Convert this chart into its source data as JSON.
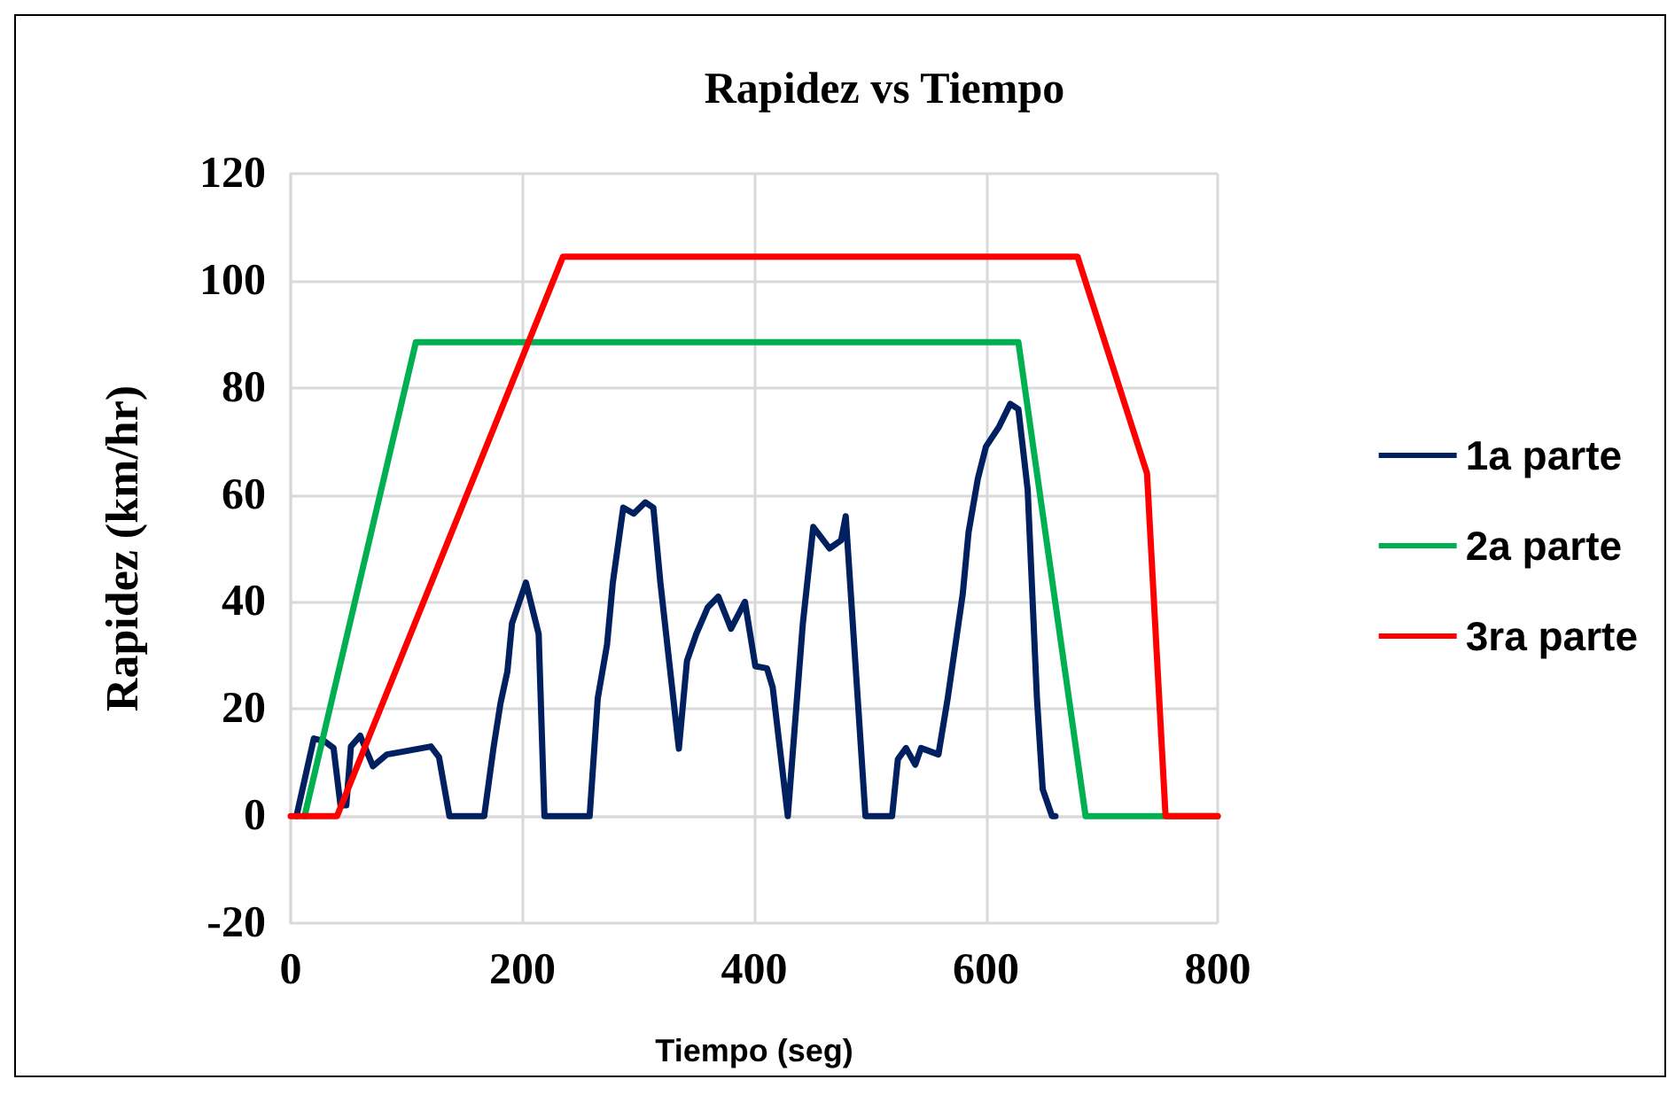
{
  "chart_data": {
    "type": "line",
    "title": "Rapidez vs Tiempo",
    "xlabel": "Tiempo (seg)",
    "ylabel": "Rapidez (km/hr)",
    "xlim": [
      0,
      800
    ],
    "xticks": [
      0,
      200,
      400,
      600,
      800
    ],
    "ylim": [
      -20,
      120
    ],
    "yticks": [
      -20,
      0,
      20,
      40,
      60,
      80,
      100,
      120
    ],
    "grid": true,
    "legend": "right",
    "marker": "none",
    "line_style": "solid",
    "series": [
      {
        "name": "1a parte",
        "color": "#002060",
        "x": [
          5,
          20,
          29,
          37,
          43,
          48,
          52,
          60,
          71,
          83,
          96,
          121,
          128,
          137,
          167,
          175,
          181,
          187,
          191,
          203,
          214,
          219,
          258,
          265,
          273,
          278,
          287,
          296,
          306,
          313,
          319,
          335,
          342,
          350,
          360,
          369,
          380,
          392,
          401,
          411,
          416,
          429,
          442,
          451,
          465,
          475,
          479,
          496,
          519,
          524,
          531,
          539,
          544,
          559,
          567,
          575,
          580,
          585,
          593,
          600,
          611,
          621,
          628,
          636,
          644,
          649,
          657,
          660
        ],
        "values": [
          0,
          14.5,
          14,
          12.7,
          2,
          2,
          13,
          15,
          9.3,
          11.5,
          12,
          13,
          11,
          0,
          0,
          12.7,
          21,
          27,
          36,
          43.6,
          34,
          0,
          0,
          22,
          32,
          43.6,
          57.6,
          56.5,
          58.6,
          57.6,
          43.7,
          12.6,
          29,
          34,
          39,
          41,
          35,
          40,
          28,
          27.6,
          24,
          0,
          36,
          54,
          50,
          51.5,
          56,
          0,
          0,
          10.6,
          12.7,
          9.6,
          12.7,
          11.5,
          22,
          34,
          41.5,
          53,
          63,
          69,
          72.6,
          77,
          76,
          61,
          22,
          5,
          0,
          0
        ]
      },
      {
        "name": "2a parte",
        "color": "#00b050",
        "x": [
          12,
          108,
          628,
          686,
          800
        ],
        "values": [
          0,
          88.5,
          88.5,
          0,
          0
        ]
      },
      {
        "name": "3ra parte",
        "color": "#ff0000",
        "x": [
          0,
          40,
          235,
          679,
          739,
          755,
          800
        ],
        "values": [
          0,
          0,
          104.5,
          104.5,
          64,
          0,
          0
        ]
      }
    ]
  }
}
